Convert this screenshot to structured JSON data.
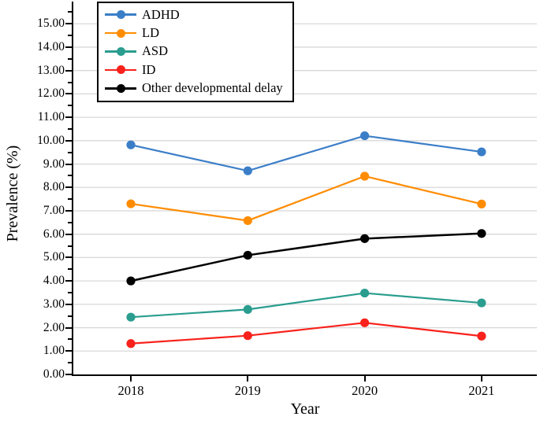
{
  "figure": {
    "background": "#ffffff",
    "axis_color": "#000000"
  },
  "chart_data": {
    "type": "line",
    "title": "",
    "xlabel": "Year",
    "ylabel": "Prevalence (%)",
    "x_ticks": [
      "2018",
      "2019",
      "2020",
      "2021"
    ],
    "y_tick_labels": [
      "0.00",
      "1.00",
      "2.00",
      "3.00",
      "4.00",
      "5.00",
      "6.00",
      "7.00",
      "8.00",
      "9.00",
      "10.00",
      "11.00",
      "12.00",
      "13.00",
      "14.00",
      "15.00"
    ],
    "ylim": [
      0,
      15.95
    ],
    "grid": "horizontal",
    "gridline_color": "#d8d8d8",
    "legend_position": "top-left",
    "series": [
      {
        "name": "ADHD",
        "color": "#3b7ec8",
        "values": [
          9.82,
          8.71,
          10.21,
          9.52
        ]
      },
      {
        "name": "LD",
        "color": "#ff8c00",
        "values": [
          7.3,
          6.58,
          8.48,
          7.29
        ]
      },
      {
        "name": "ASD",
        "color": "#2a9d8f",
        "values": [
          2.45,
          2.78,
          3.48,
          3.06
        ]
      },
      {
        "name": "ID",
        "color": "#f8211b",
        "values": [
          1.32,
          1.66,
          2.21,
          1.64
        ]
      },
      {
        "name": "Other developmental delay",
        "color": "#000000",
        "values": [
          4.0,
          5.1,
          5.81,
          6.03
        ]
      }
    ]
  }
}
